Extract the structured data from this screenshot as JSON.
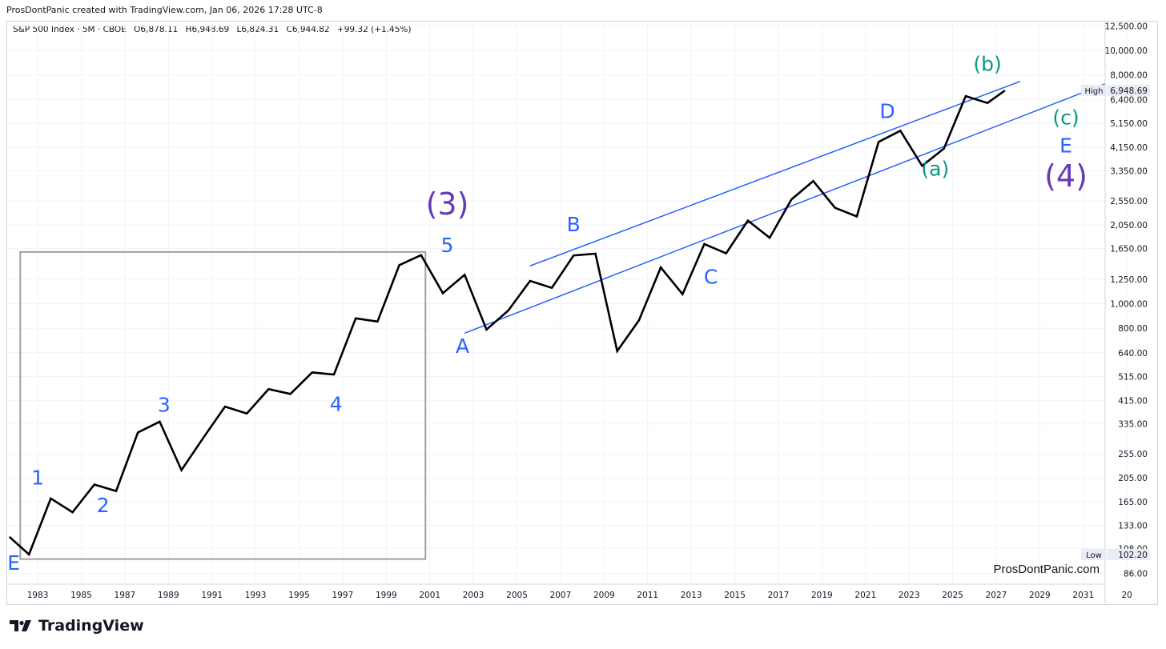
{
  "header": {
    "text": "ProsDontPanic created with TradingView.com, Jan 06, 2026 17:28 UTC-8"
  },
  "legend": {
    "symbol": "S&P 500 Index · 5M · CBOE",
    "open": "O6,878.11",
    "high": "H6,948.69",
    "low": "L6,824.31",
    "close": "C6,944.82",
    "change": "+99.32 (+1.45%)"
  },
  "watermark": "ProsDontPanic.com",
  "footer": {
    "brand": "TradingView"
  },
  "price_tags": {
    "high_label": "High",
    "high_value": "6,948.69",
    "low_label": "Low",
    "low_value": "102.20"
  },
  "colors": {
    "price_line": "#000000",
    "trendline": "#2962ff",
    "wave_blue": "#2962ff",
    "wave_teal": "#089981",
    "wave_purple": "#673ab7",
    "box": "#9e9e9e",
    "grid": "#f0f3fa"
  },
  "chart_data": {
    "type": "line",
    "scale": "log",
    "ylim": [
      78,
      13000
    ],
    "xlim": [
      1981.6,
      2032
    ],
    "x_tick_labels": [
      "1983",
      "1985",
      "1987",
      "1989",
      "1991",
      "1993",
      "1995",
      "1997",
      "1999",
      "2001",
      "2003",
      "2005",
      "2007",
      "2009",
      "2011",
      "2013",
      "2015",
      "2017",
      "2019",
      "2021",
      "2023",
      "2025",
      "2027",
      "2029",
      "2031",
      "20"
    ],
    "y_tick_labels": [
      "12,500.00",
      "10,000.00",
      "8,000.00",
      "6,400.00",
      "5,150.00",
      "4,150.00",
      "3,350.00",
      "2,550.00",
      "2,050.00",
      "1,650.00",
      "1,250.00",
      "1,000.00",
      "800.00",
      "640.00",
      "515.00",
      "415.00",
      "335.00",
      "255.00",
      "205.00",
      "165.00",
      "133.00",
      "108.00",
      "86.00"
    ],
    "series": [
      {
        "x": [
          1981.7,
          1982.6,
          1983.6,
          1984.6,
          1985.6,
          1986.6,
          1987.6,
          1988.6,
          1989.6,
          1990.6,
          1991.6,
          1992.6,
          1993.6,
          1994.6,
          1995.6,
          1996.6,
          1997.6,
          1998.6,
          1999.6,
          2000.6,
          2001.6,
          2002.6,
          2003.6,
          2004.6,
          2005.6,
          2006.6,
          2007.6,
          2008.6,
          2009.6,
          2010.6,
          2011.6,
          2012.6,
          2013.6,
          2014.6,
          2015.6,
          2016.6,
          2017.6,
          2018.6,
          2019.6,
          2020.6,
          2021.6,
          2022.6,
          2023.6,
          2024.6,
          2025.6,
          2026.6,
          2027.4
        ],
        "y": [
          120,
          102.2,
          170,
          150,
          193,
          182,
          310,
          342,
          220,
          295,
          392,
          368,
          460,
          440,
          535,
          525,
          875,
          850,
          1420,
          1555,
          1100,
          1300,
          790,
          940,
          1230,
          1155,
          1550,
          1575,
          650,
          860,
          1390,
          1090,
          1720,
          1580,
          2130,
          1820,
          2580,
          3050,
          2390,
          2210,
          4350,
          4820,
          3500,
          4100,
          6600,
          6200,
          6948.69
        ]
      }
    ],
    "trendlines": [
      {
        "x": [
          2005.6,
          2028.1
        ],
        "y": [
          1410,
          7550
        ]
      },
      {
        "x": [
          2002.6,
          2032.0
        ],
        "y": [
          765,
          7380
        ]
      }
    ],
    "box": {
      "x": [
        1982.2,
        2000.8
      ],
      "y": [
        98,
        1600
      ]
    },
    "wave_labels": [
      {
        "text": "E",
        "x": 1981.9,
        "y": 89,
        "color": "blue"
      },
      {
        "text": "1",
        "x": 1983.0,
        "y": 193,
        "color": "blue"
      },
      {
        "text": "2",
        "x": 1986.0,
        "y": 150,
        "color": "blue"
      },
      {
        "text": "3",
        "x": 1988.8,
        "y": 374,
        "color": "blue"
      },
      {
        "text": "4",
        "x": 1996.7,
        "y": 377,
        "color": "blue"
      },
      {
        "text": "5",
        "x": 2001.8,
        "y": 1600,
        "color": "blue"
      },
      {
        "text": "(3)",
        "x": 2001.8,
        "y": 2250,
        "color": "purple"
      },
      {
        "text": "A",
        "x": 2002.5,
        "y": 640,
        "color": "blue"
      },
      {
        "text": "B",
        "x": 2007.6,
        "y": 1930,
        "color": "blue"
      },
      {
        "text": "C",
        "x": 2013.9,
        "y": 1200,
        "color": "blue"
      },
      {
        "text": "D",
        "x": 2022.0,
        "y": 5400,
        "color": "blue"
      },
      {
        "text": "(a)",
        "x": 2024.2,
        "y": 3200,
        "color": "teal"
      },
      {
        "text": "(b)",
        "x": 2026.6,
        "y": 8300,
        "color": "teal"
      },
      {
        "text": "(c)",
        "x": 2030.2,
        "y": 5100,
        "color": "teal"
      },
      {
        "text": "E",
        "x": 2030.2,
        "y": 3950,
        "color": "blue"
      },
      {
        "text": "(4)",
        "x": 2030.2,
        "y": 2900,
        "color": "purple"
      }
    ]
  }
}
